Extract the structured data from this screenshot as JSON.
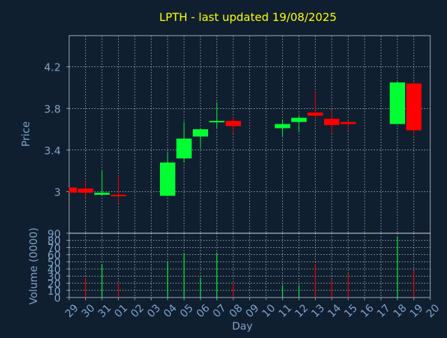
{
  "title": "LPTH - last updated 19/08/2025",
  "colors": {
    "background": "#0f1f30",
    "title": "#ffff00",
    "axis_text": "#7fa2c8",
    "frame": "#ffffff",
    "up": "#00ff33",
    "down": "#ff0000"
  },
  "chart_data": [
    {
      "type": "candlestick",
      "ylabel": "Price",
      "ylim": [
        2.6,
        4.5
      ],
      "yticks": [
        "3",
        "3.4",
        "3.8",
        "4.2"
      ],
      "grid": true,
      "x": [
        "29",
        "30",
        "31",
        "01",
        "02",
        "03",
        "04",
        "05",
        "06",
        "07",
        "08",
        "09",
        "10",
        "11",
        "12",
        "13",
        "14",
        "15",
        "16",
        "17",
        "18",
        "19",
        "20"
      ],
      "candles": [
        {
          "day": "29",
          "open": 3.04,
          "close": 2.99,
          "high": 3.04,
          "low": 2.99
        },
        {
          "day": "30",
          "open": 3.03,
          "close": 2.99,
          "high": 3.1,
          "low": 2.94
        },
        {
          "day": "31",
          "open": 2.97,
          "close": 2.99,
          "high": 3.2,
          "low": 2.96
        },
        {
          "day": "01",
          "open": 2.97,
          "close": 2.96,
          "high": 3.15,
          "low": 2.89
        },
        {
          "day": "04",
          "open": 2.96,
          "close": 3.28,
          "high": 3.38,
          "low": 2.96
        },
        {
          "day": "05",
          "open": 3.32,
          "close": 3.51,
          "high": 3.67,
          "low": 3.28
        },
        {
          "day": "06",
          "open": 3.53,
          "close": 3.6,
          "high": 3.61,
          "low": 3.41
        },
        {
          "day": "07",
          "open": 3.67,
          "close": 3.68,
          "high": 3.86,
          "low": 3.61
        },
        {
          "day": "08",
          "open": 3.68,
          "close": 3.63,
          "high": 3.72,
          "low": 3.56
        },
        {
          "day": "11",
          "open": 3.61,
          "close": 3.65,
          "high": 3.69,
          "low": 3.53
        },
        {
          "day": "12",
          "open": 3.67,
          "close": 3.71,
          "high": 3.73,
          "low": 3.57
        },
        {
          "day": "13",
          "open": 3.76,
          "close": 3.73,
          "high": 3.96,
          "low": 3.7
        },
        {
          "day": "14",
          "open": 3.7,
          "close": 3.64,
          "high": 3.79,
          "low": 3.56
        },
        {
          "day": "15",
          "open": 3.67,
          "close": 3.65,
          "high": 3.68,
          "low": 3.59
        },
        {
          "day": "18",
          "open": 3.65,
          "close": 4.05,
          "high": 4.06,
          "low": 3.65
        },
        {
          "day": "19",
          "open": 4.04,
          "close": 3.59,
          "high": 4.05,
          "low": 3.54
        }
      ]
    },
    {
      "type": "bar",
      "ylabel": "Volume (0000)",
      "xlabel": "Day",
      "ylim": [
        0,
        90
      ],
      "yticks": [
        "0",
        "10",
        "20",
        "30",
        "40",
        "50",
        "60",
        "70",
        "80",
        "90"
      ],
      "grid": true,
      "x": [
        "29",
        "30",
        "31",
        "01",
        "02",
        "03",
        "04",
        "05",
        "06",
        "07",
        "08",
        "09",
        "10",
        "11",
        "12",
        "13",
        "14",
        "15",
        "16",
        "17",
        "18",
        "19",
        "20"
      ],
      "bars": [
        {
          "day": "30",
          "value": 27,
          "direction": "down"
        },
        {
          "day": "31",
          "value": 47,
          "direction": "up"
        },
        {
          "day": "01",
          "value": 20,
          "direction": "down"
        },
        {
          "day": "04",
          "value": 50,
          "direction": "up"
        },
        {
          "day": "05",
          "value": 62,
          "direction": "up"
        },
        {
          "day": "06",
          "value": 28,
          "direction": "up"
        },
        {
          "day": "07",
          "value": 63,
          "direction": "up"
        },
        {
          "day": "08",
          "value": 20,
          "direction": "down"
        },
        {
          "day": "11",
          "value": 17,
          "direction": "up"
        },
        {
          "day": "12",
          "value": 17,
          "direction": "up"
        },
        {
          "day": "13",
          "value": 47,
          "direction": "down"
        },
        {
          "day": "14",
          "value": 25,
          "direction": "down"
        },
        {
          "day": "15",
          "value": 33,
          "direction": "down"
        },
        {
          "day": "18",
          "value": 85,
          "direction": "up"
        },
        {
          "day": "19",
          "value": 38,
          "direction": "down"
        }
      ]
    }
  ]
}
